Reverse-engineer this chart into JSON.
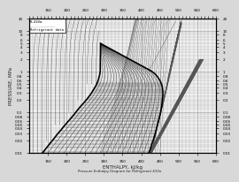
{
  "title": "R-410a",
  "subtitle": "Pressure Enthalpy Diagram for Refrigerant 410a",
  "xlabel": "ENTHALPY, kJ/kg",
  "ylabel": "PRESSURE, MPa",
  "bg_color": "#d8d8d8",
  "plot_bg_color": "#f0f0f0",
  "grid_color": "#bbbbbb",
  "line_color": "#555555",
  "dome_color": "#000000",
  "x_min": 100,
  "x_max": 600,
  "y_min": 0.01,
  "y_max": 20.0,
  "x_ticks": [
    150,
    200,
    250,
    300,
    350,
    400,
    450,
    500,
    550,
    600
  ],
  "y_ticks": [
    0.01,
    0.02,
    0.03,
    0.04,
    0.05,
    0.06,
    0.08,
    0.1,
    0.2,
    0.3,
    0.4,
    0.5,
    0.6,
    0.8,
    1.0,
    2.0,
    3.0,
    4.0,
    5.0,
    6.0,
    8.0,
    10.0,
    20.0
  ],
  "y_tick_labels": [
    "0.01",
    "0.02",
    "0.03",
    "0.04",
    "0.05",
    "0.06",
    "0.08",
    "0.1",
    "0.2",
    "0.3",
    "0.4",
    "0.5",
    "0.6",
    "0.8",
    "1",
    "2",
    "3",
    "4",
    "5",
    "6",
    "8",
    "10",
    "20"
  ],
  "text_color": "#222222",
  "lc": "#555555",
  "lw_dome": 1.0,
  "lw_minor": 0.3,
  "lw_major": 0.5
}
